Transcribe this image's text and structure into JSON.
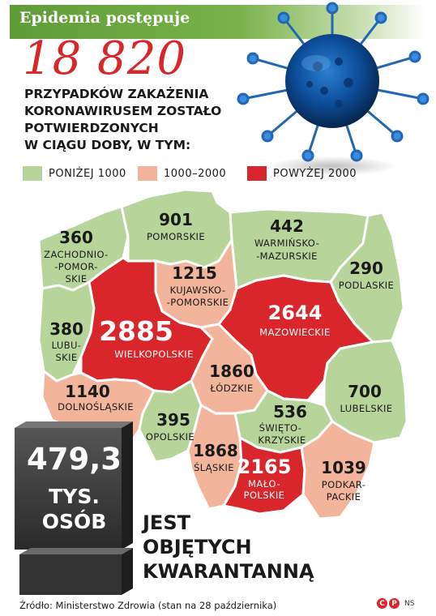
{
  "header": {
    "title": "Epidemia postępuje"
  },
  "headline": {
    "number": "18 820",
    "lines": [
      "PRZYPADKÓW ZAKAŻENIA",
      "KORONAWIRUSEM ZOSTAŁO",
      "POTWIERDZONYCH",
      "W CIĄGU DOBY, W TYM:"
    ]
  },
  "legend": [
    {
      "label": "PONIŻEJ 1000",
      "color": "#b7d49a"
    },
    {
      "label": "1000–2000",
      "color": "#f2b49a"
    },
    {
      "label": "POWYŻEJ 2000",
      "color": "#d9262b"
    }
  ],
  "regions": {
    "zachodniopomorskie": {
      "value": "360",
      "name": [
        "ZACHODNIO-",
        "-POMOR-",
        "SKIE"
      ]
    },
    "pomorskie": {
      "value": "901",
      "name": [
        "POMORSKIE"
      ]
    },
    "warminsko_mazurskie": {
      "value": "442",
      "name": [
        "WARMIŃSKO-",
        "-MAZURSKIE"
      ]
    },
    "podlaskie": {
      "value": "290",
      "name": [
        "PODLASKIE"
      ]
    },
    "kujawsko_pomorskie": {
      "value": "1215",
      "name": [
        "KUJAWSKO-",
        "-POMORSKIE"
      ]
    },
    "lubuskie": {
      "value": "380",
      "name": [
        "LUBU-",
        "SKIE"
      ]
    },
    "wielkopolskie": {
      "value": "2885",
      "name": [
        "WIELKOPOLSKIE"
      ]
    },
    "mazowieckie": {
      "value": "2644",
      "name": [
        "MAZOWIECKIE"
      ]
    },
    "lodzkie": {
      "value": "1860",
      "name": [
        "ŁÓDZKIE"
      ]
    },
    "dolnoslaskie": {
      "value": "1140",
      "name": [
        "DOLNOŚLĄSKIE"
      ]
    },
    "lubelskie": {
      "value": "700",
      "name": [
        "LUBELSKIE"
      ]
    },
    "opolskie": {
      "value": "395",
      "name": [
        "OPOLSKIE"
      ]
    },
    "swietokrzyskie": {
      "value": "536",
      "name": [
        "ŚWIĘTO-",
        "KRZYSKIE"
      ]
    },
    "slaskie": {
      "value": "1868",
      "name": [
        "ŚLĄSKIE"
      ]
    },
    "malopolskie": {
      "value": "2165",
      "name": [
        "MAŁO-",
        "POLSKIE"
      ]
    },
    "podkarpackie": {
      "value": "1039",
      "name": [
        "PODKAR-",
        "PACKIE"
      ]
    }
  },
  "quarantine": {
    "number": "479,3",
    "unit_lines": [
      "TYS.",
      "OSÓB"
    ],
    "text_lines": [
      "JEST",
      "OBJĘTYCH",
      "KWARANTANNĄ"
    ]
  },
  "footer": {
    "source": "Źródło: Ministerstwo Zdrowia (stan na 28 października)",
    "credit": "NS",
    "copyright_marks": [
      "C",
      "P"
    ]
  },
  "icons": {
    "virus": "coronavirus-icon"
  }
}
